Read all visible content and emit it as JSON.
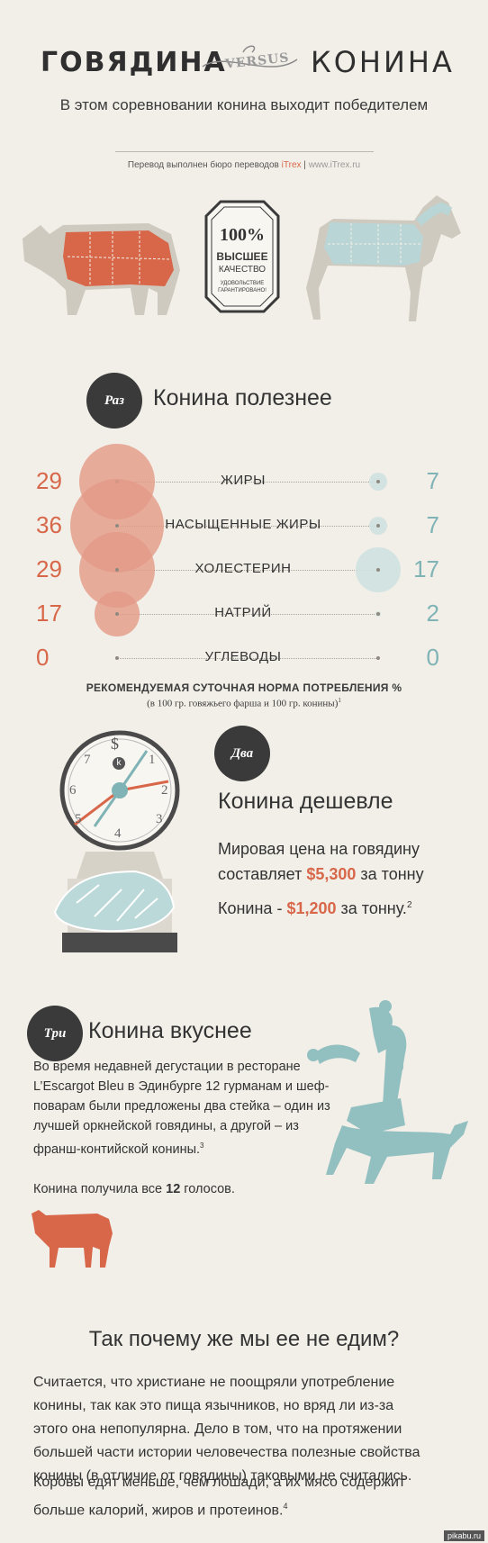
{
  "header": {
    "left_word": "ГОВЯДИНА",
    "versus": "VERSUS",
    "right_word": "КОНИНА",
    "subtitle": "В этом соревновании конина выходит победителем",
    "credit_prefix": "Перевод выполнен бюро переводов",
    "credit_brand": "iTrex",
    "credit_sep": "|",
    "credit_url": "www.iTrex.ru"
  },
  "seal": {
    "percent": "100%",
    "quality1": "ВЫСШЕЕ",
    "quality2": "КАЧЕСТВО",
    "guarantee1": "УДОВОЛЬСТВИЕ",
    "guarantee2": "ГАРАНТИРОВАНО!"
  },
  "colors": {
    "beef": "#d8674a",
    "horse": "#7fb3b5",
    "dark": "#3a3a3a",
    "background": "#f2efe8"
  },
  "section1": {
    "badge": "Раз",
    "title": "Конина полезнее",
    "rows": [
      {
        "label": "ЖИРЫ",
        "beef": "29",
        "horse": "7",
        "beef_value": 29,
        "horse_value": 7
      },
      {
        "label": "НАСЫЩЕННЫЕ ЖИРЫ",
        "beef": "36",
        "horse": "7",
        "beef_value": 36,
        "horse_value": 7
      },
      {
        "label": "ХОЛЕСТЕРИН",
        "beef": "29",
        "horse": "17",
        "beef_value": 29,
        "horse_value": 17
      },
      {
        "label": "НАТРИЙ",
        "beef": "17",
        "horse": "2",
        "beef_value": 17,
        "horse_value": 2
      },
      {
        "label": "УГЛЕВОДЫ",
        "beef": "0",
        "horse": "0",
        "beef_value": 0,
        "horse_value": 0
      }
    ],
    "caption": "РЕКОМЕНДУЕМАЯ СУТОЧНАЯ НОРМА ПОТРЕБЛЕНИЯ %",
    "subcaption": "(в 100 гр. говяжьего фарша и 100 гр. конины)",
    "subcaption_note": "1"
  },
  "section2": {
    "badge": "Два",
    "title": "Конина дешевле",
    "line1": "Мировая цена на говядину",
    "line2_pre": "составляет",
    "beef_price": "$5,300",
    "line2_post": "за тонну",
    "line3_pre": "Конина -",
    "horse_price": "$1,200",
    "line3_post": "за тонну.",
    "note": "2",
    "clock_dollar": "$",
    "clock_k": "k",
    "clock_numbers": [
      "7",
      "1",
      "6",
      "2",
      "5",
      "3",
      "4"
    ]
  },
  "section3": {
    "badge": "Три",
    "title": "Конина вкуснее",
    "text": "Во время недавней дегустации в ресторане L’Escargot Bleu в Эдинбурге 12 гурманам и шеф-поварам были предложены два стейка – один из лучшей оркнейской говядины, а другой – из франш-контийской конины.",
    "note": "3",
    "votes_pre": "Конина получила все",
    "votes_count": "12",
    "votes_post": "голосов."
  },
  "section4": {
    "title": "Так почему же мы ее не едим?",
    "para1": "Считается, что христиане не поощряли употребление конины, так как это пища язычников, но вряд ли из-за этого она непопулярна. Дело в том, что на протяжении большей части истории человечества полезные свойства конины (в отличие от говядины) таковыми не считались.",
    "para2": "Коровы едят меньше, чем лошади, а их мясо содержит больше калорий, жиров и протеинов.",
    "note": "4"
  },
  "watermark": "pikabu.ru"
}
